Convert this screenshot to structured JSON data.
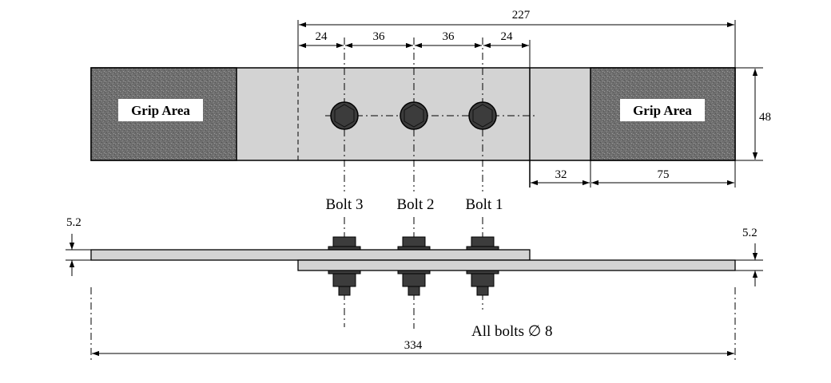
{
  "top_view": {
    "dims": {
      "overall_lap_length": "227",
      "edge_distance_left": "24",
      "pitch_1": "36",
      "pitch_2": "36",
      "edge_distance_right": "24",
      "plate_width": "48",
      "gap_length": "32",
      "grip_length": "75"
    },
    "grip_left_label": "Grip Area",
    "grip_right_label": "Grip Area"
  },
  "side_view": {
    "bolt_labels": [
      "Bolt 3",
      "Bolt 2",
      "Bolt 1"
    ],
    "thickness_left": "5.2",
    "thickness_right": "5.2",
    "overall_length": "334",
    "bolt_note": "All bolts ∅ 8"
  },
  "colors": {
    "plate_fill": "#d3d3d3",
    "grip_fill": "#6e6e6e",
    "bolt_fill": "#3c3c3c",
    "line": "#000000"
  }
}
